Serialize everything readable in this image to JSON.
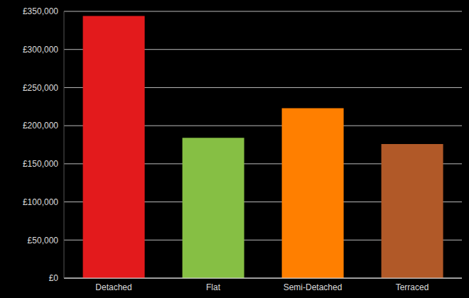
{
  "chart_data": {
    "type": "bar",
    "categories": [
      "Detached",
      "Flat",
      "Semi-Detached",
      "Terraced"
    ],
    "values": [
      344000,
      184000,
      223000,
      176000
    ],
    "colors": [
      "#e31a1c",
      "#86bf44",
      "#ff7f00",
      "#b15928"
    ],
    "ylim": [
      0,
      350000
    ],
    "yticks": [
      {
        "value": 0,
        "label": "£0"
      },
      {
        "value": 50000,
        "label": "£50,000"
      },
      {
        "value": 100000,
        "label": "£100,000"
      },
      {
        "value": 150000,
        "label": "£150,000"
      },
      {
        "value": 200000,
        "label": "£200,000"
      },
      {
        "value": 250000,
        "label": "£250,000"
      },
      {
        "value": 300000,
        "label": "£300,000"
      },
      {
        "value": 350000,
        "label": "£350,000"
      }
    ],
    "grid": true
  }
}
